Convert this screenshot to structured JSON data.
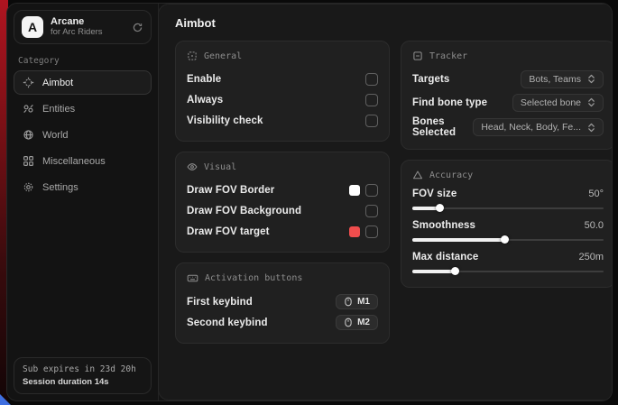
{
  "colors": {
    "accent_red": "#ef4d4d",
    "swatch_white": "#ffffff"
  },
  "app": {
    "logo_letter": "A",
    "name": "Arcane",
    "subtitle": "for Arc Riders"
  },
  "sidebar": {
    "category_label": "Category",
    "items": [
      {
        "label": "Aimbot"
      },
      {
        "label": "Entities"
      },
      {
        "label": "World"
      },
      {
        "label": "Miscellaneous"
      },
      {
        "label": "Settings"
      }
    ],
    "subscription": {
      "expires": "Sub expires in 23d 20h",
      "session": "Session duration 14s"
    }
  },
  "main": {
    "title": "Aimbot",
    "general": {
      "title": "General",
      "rows": [
        {
          "label": "Enable",
          "checked": false
        },
        {
          "label": "Always",
          "checked": false
        },
        {
          "label": "Visibility check",
          "checked": false
        }
      ]
    },
    "visual": {
      "title": "Visual",
      "rows": [
        {
          "label": "Draw FOV Border",
          "swatch": "#ffffff",
          "checked": false
        },
        {
          "label": "Draw FOV Background",
          "checked": false
        },
        {
          "label": "Draw FOV target",
          "swatch": "#ef4d4d",
          "checked": false
        }
      ]
    },
    "activation": {
      "title": "Activation buttons",
      "rows": [
        {
          "label": "First keybind",
          "key": "M1"
        },
        {
          "label": "Second keybind",
          "key": "M2"
        }
      ]
    },
    "tracker": {
      "title": "Tracker",
      "rows": [
        {
          "label": "Targets",
          "value": "Bots, Teams"
        },
        {
          "label": "Find bone type",
          "value": "Selected bone"
        },
        {
          "label": "Bones Selected",
          "value": "Head, Neck, Body, Fe..."
        }
      ]
    },
    "accuracy": {
      "title": "Accuracy",
      "rows": [
        {
          "label": "FOV size",
          "value": "50°",
          "percent": 14
        },
        {
          "label": "Smoothness",
          "value": "50.0",
          "percent": 48
        },
        {
          "label": "Max distance",
          "value": "250m",
          "percent": 22
        }
      ]
    }
  }
}
